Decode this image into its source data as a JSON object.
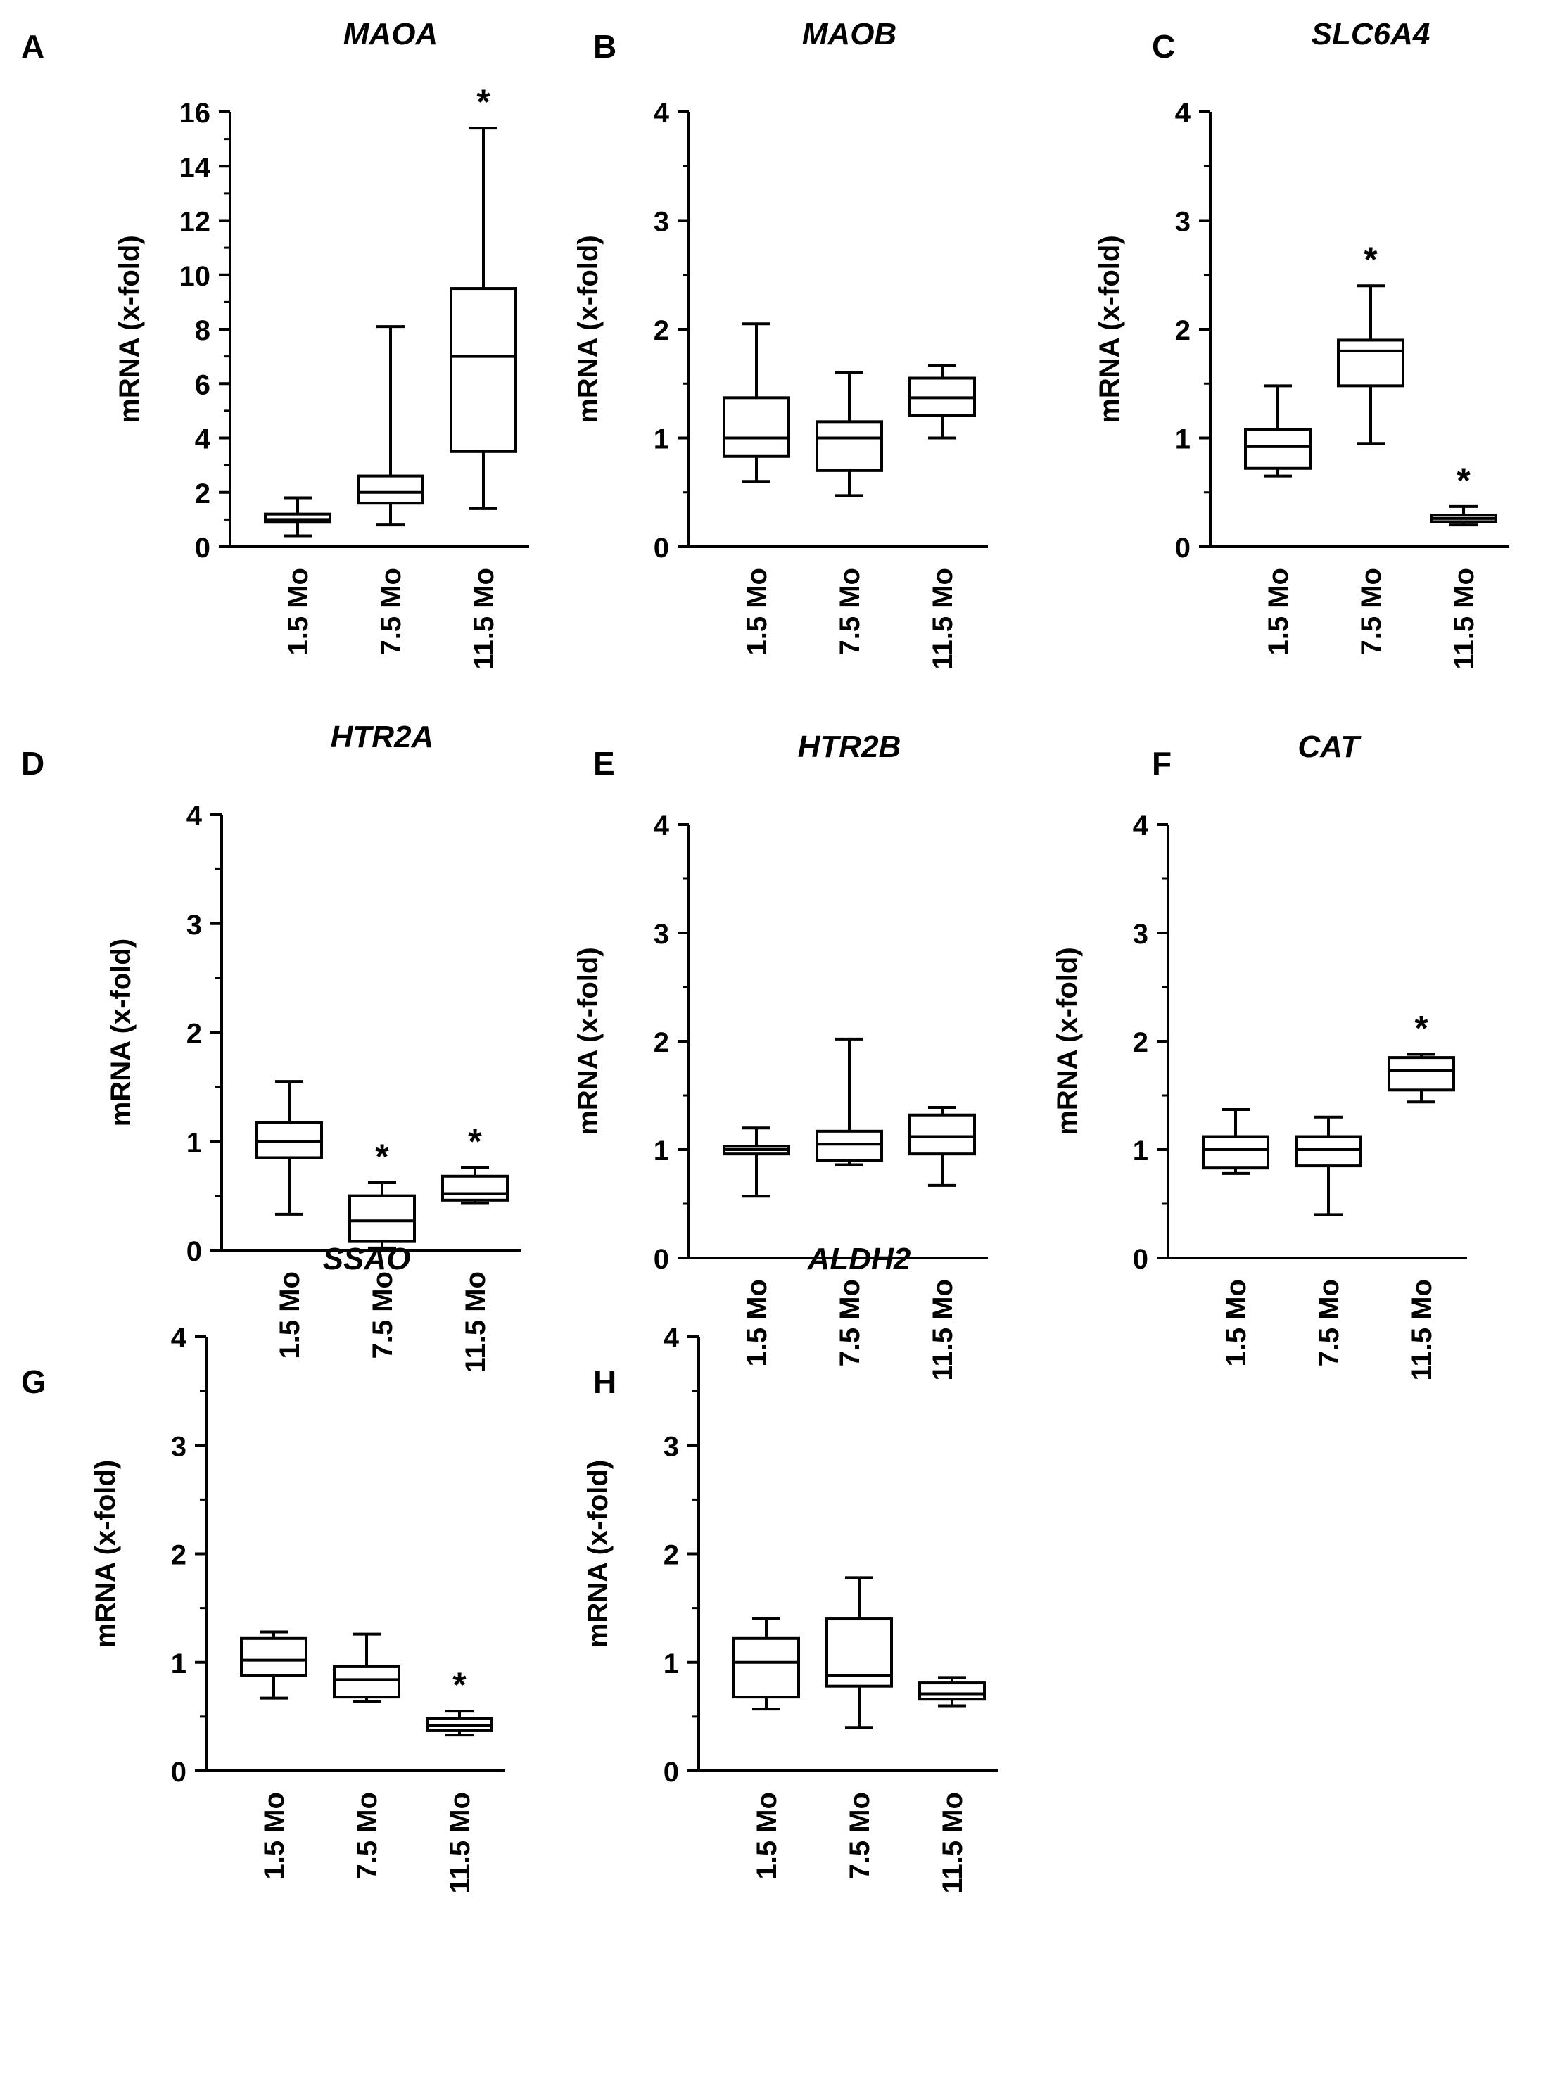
{
  "chart_data": [
    {
      "panel": "A",
      "title": "MAOA",
      "type": "box",
      "ylabel": "mRNA (x-fold)",
      "ylim": [
        0,
        16
      ],
      "yticks": [
        "0",
        "2",
        "4",
        "6",
        "8",
        "10",
        "12",
        "14",
        "16"
      ],
      "categories": [
        "1.5 Mo",
        "7.5 Mo",
        "11.5 Mo"
      ],
      "boxes": [
        {
          "min": 0.4,
          "q1": 0.9,
          "median": 1.0,
          "q3": 1.2,
          "max": 1.8,
          "sig": ""
        },
        {
          "min": 0.8,
          "q1": 1.6,
          "median": 2.0,
          "q3": 2.6,
          "max": 8.1,
          "sig": ""
        },
        {
          "min": 1.4,
          "q1": 3.5,
          "median": 7.0,
          "q3": 9.5,
          "max": 15.4,
          "sig": "*"
        }
      ]
    },
    {
      "panel": "B",
      "title": "MAOB",
      "type": "box",
      "ylabel": "mRNA (x-fold)",
      "ylim": [
        0,
        4
      ],
      "yticks": [
        "0",
        "1",
        "2",
        "3",
        "4"
      ],
      "categories": [
        "1.5 Mo",
        "7.5 Mo",
        "11.5 Mo"
      ],
      "boxes": [
        {
          "min": 0.6,
          "q1": 0.83,
          "median": 1.0,
          "q3": 1.37,
          "max": 2.05,
          "sig": ""
        },
        {
          "min": 0.47,
          "q1": 0.7,
          "median": 1.0,
          "q3": 1.15,
          "max": 1.6,
          "sig": ""
        },
        {
          "min": 1.0,
          "q1": 1.21,
          "median": 1.37,
          "q3": 1.55,
          "max": 1.67,
          "sig": ""
        }
      ]
    },
    {
      "panel": "C",
      "title": "SLC6A4",
      "type": "box",
      "ylabel": "mRNA (x-fold)",
      "ylim": [
        0,
        4
      ],
      "yticks": [
        "0",
        "1",
        "2",
        "3",
        "4"
      ],
      "categories": [
        "1.5 Mo",
        "7.5 Mo",
        "11.5 Mo"
      ],
      "boxes": [
        {
          "min": 0.65,
          "q1": 0.72,
          "median": 0.92,
          "q3": 1.08,
          "max": 1.48,
          "sig": ""
        },
        {
          "min": 0.95,
          "q1": 1.48,
          "median": 1.8,
          "q3": 1.9,
          "max": 2.4,
          "sig": "*"
        },
        {
          "min": 0.2,
          "q1": 0.23,
          "median": 0.26,
          "q3": 0.29,
          "max": 0.37,
          "sig": "*"
        }
      ]
    },
    {
      "panel": "D",
      "title": "HTR2A",
      "type": "box",
      "ylabel": "mRNA (x-fold)",
      "ylim": [
        0,
        4
      ],
      "yticks": [
        "0",
        "1",
        "2",
        "3",
        "4"
      ],
      "categories": [
        "1.5 Mo",
        "7.5 Mo",
        "11.5 Mo"
      ],
      "boxes": [
        {
          "min": 0.33,
          "q1": 0.85,
          "median": 1.0,
          "q3": 1.17,
          "max": 1.55,
          "sig": ""
        },
        {
          "min": 0.02,
          "q1": 0.08,
          "median": 0.27,
          "q3": 0.5,
          "max": 0.62,
          "sig": "*"
        },
        {
          "min": 0.43,
          "q1": 0.46,
          "median": 0.52,
          "q3": 0.68,
          "max": 0.76,
          "sig": "*"
        }
      ]
    },
    {
      "panel": "E",
      "title": "HTR2B",
      "type": "box",
      "ylabel": "mRNA (x-fold)",
      "ylim": [
        0,
        4
      ],
      "yticks": [
        "0",
        "1",
        "2",
        "3",
        "4"
      ],
      "categories": [
        "1.5 Mo",
        "7.5 Mo",
        "11.5 Mo"
      ],
      "boxes": [
        {
          "min": 0.57,
          "q1": 0.96,
          "median": 1.0,
          "q3": 1.03,
          "max": 1.2,
          "sig": ""
        },
        {
          "min": 0.86,
          "q1": 0.9,
          "median": 1.05,
          "q3": 1.17,
          "max": 2.02,
          "sig": ""
        },
        {
          "min": 0.67,
          "q1": 0.96,
          "median": 1.12,
          "q3": 1.32,
          "max": 1.39,
          "sig": ""
        }
      ]
    },
    {
      "panel": "F",
      "title": "CAT",
      "type": "box",
      "ylabel": "mRNA (x-fold)",
      "ylim": [
        0,
        4
      ],
      "yticks": [
        "0",
        "1",
        "2",
        "3",
        "4"
      ],
      "categories": [
        "1.5 Mo",
        "7.5 Mo",
        "11.5 Mo"
      ],
      "boxes": [
        {
          "min": 0.78,
          "q1": 0.83,
          "median": 1.0,
          "q3": 1.12,
          "max": 1.37,
          "sig": ""
        },
        {
          "min": 0.4,
          "q1": 0.85,
          "median": 1.0,
          "q3": 1.12,
          "max": 1.3,
          "sig": ""
        },
        {
          "min": 1.44,
          "q1": 1.55,
          "median": 1.73,
          "q3": 1.85,
          "max": 1.88,
          "sig": "*"
        }
      ]
    },
    {
      "panel": "G",
      "title": "SSAO",
      "type": "box",
      "ylabel": "mRNA (x-fold)",
      "ylim": [
        0,
        4
      ],
      "yticks": [
        "0",
        "1",
        "2",
        "3",
        "4"
      ],
      "categories": [
        "1.5 Mo",
        "7.5 Mo",
        "11.5 Mo"
      ],
      "boxes": [
        {
          "min": 0.67,
          "q1": 0.88,
          "median": 1.02,
          "q3": 1.22,
          "max": 1.28,
          "sig": ""
        },
        {
          "min": 0.64,
          "q1": 0.68,
          "median": 0.84,
          "q3": 0.96,
          "max": 1.26,
          "sig": ""
        },
        {
          "min": 0.33,
          "q1": 0.37,
          "median": 0.42,
          "q3": 0.48,
          "max": 0.55,
          "sig": "*"
        }
      ]
    },
    {
      "panel": "H",
      "title": "ALDH2",
      "type": "box",
      "ylabel": "mRNA (x-fold)",
      "ylim": [
        0,
        4
      ],
      "yticks": [
        "0",
        "1",
        "2",
        "3",
        "4"
      ],
      "categories": [
        "1.5 Mo",
        "7.5 Mo",
        "11.5 Mo"
      ],
      "boxes": [
        {
          "min": 0.57,
          "q1": 0.68,
          "median": 1.0,
          "q3": 1.22,
          "max": 1.4,
          "sig": ""
        },
        {
          "min": 0.4,
          "q1": 0.78,
          "median": 0.88,
          "q3": 1.4,
          "max": 1.78,
          "sig": ""
        },
        {
          "min": 0.6,
          "q1": 0.66,
          "median": 0.71,
          "q3": 0.81,
          "max": 0.86,
          "sig": ""
        }
      ]
    }
  ]
}
